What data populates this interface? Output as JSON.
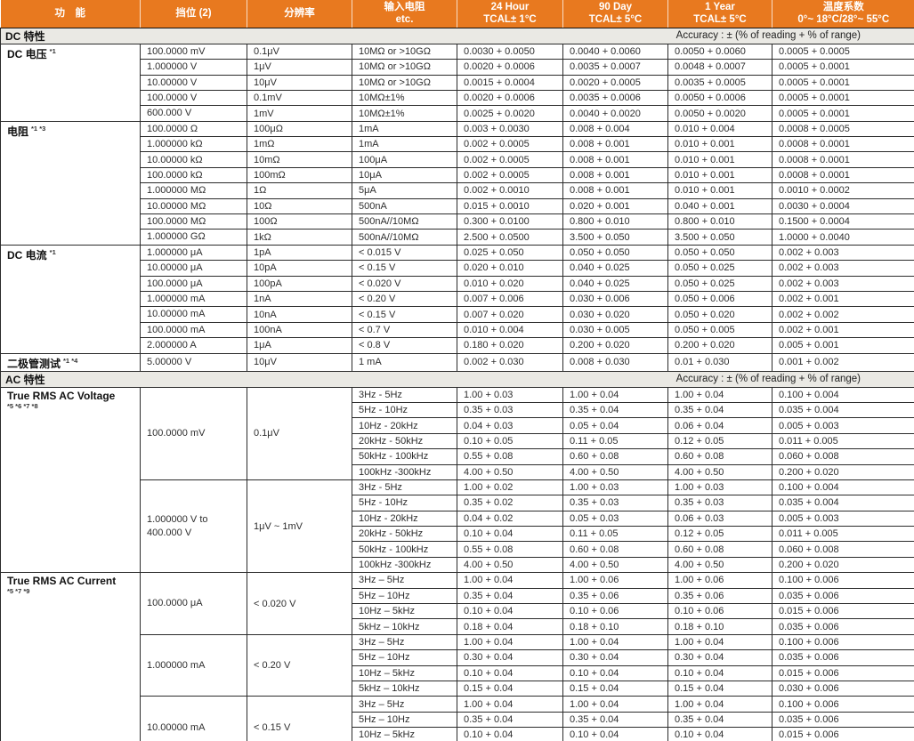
{
  "colors": {
    "header_bg": "#E8791F",
    "header_text": "#FFFFFF",
    "section_bar_bg": "#EAE9E4",
    "grid_line": "#2B2B2B"
  },
  "header": {
    "columns": [
      {
        "id": "function",
        "line1": "功　能",
        "line2": ""
      },
      {
        "id": "range",
        "line1": "挡位 (2)",
        "line2": ""
      },
      {
        "id": "resolution",
        "line1": "分辨率",
        "line2": ""
      },
      {
        "id": "input",
        "line1": "输入电阻",
        "line2": "etc."
      },
      {
        "id": "24hour",
        "line1": "24 Hour",
        "line2": "TCAL± 1°C"
      },
      {
        "id": "90day",
        "line1": "90 Day",
        "line2": "TCAL± 5°C"
      },
      {
        "id": "1year",
        "line1": "1 Year",
        "line2": "TCAL± 5°C"
      },
      {
        "id": "tempco",
        "line1": "温度系数",
        "line2": "0°~ 18°C/28°~ 55°C"
      }
    ]
  },
  "sections": [
    {
      "title": "DC 特性",
      "accuracy_note": "Accuracy : ± (% of reading + % of range)",
      "groups": [
        {
          "name": "DC 电压",
          "footnote": "*1",
          "blocks": [
            {
              "range": "100.0000 mV",
              "resolution": "0.1μV",
              "rows": [
                [
                  "10MΩ or >10GΩ",
                  "0.0030 + 0.0050",
                  "0.0040 + 0.0060",
                  "0.0050 + 0.0060",
                  "0.0005 + 0.0005"
                ]
              ]
            },
            {
              "range": "1.000000 V",
              "resolution": "1μV",
              "rows": [
                [
                  "10MΩ or >10GΩ",
                  "0.0020 + 0.0006",
                  "0.0035 + 0.0007",
                  "0.0048 + 0.0007",
                  "0.0005 + 0.0001"
                ]
              ]
            },
            {
              "range": "10.00000 V",
              "resolution": "10μV",
              "rows": [
                [
                  "10MΩ or >10GΩ",
                  "0.0015 + 0.0004",
                  "0.0020 + 0.0005",
                  "0.0035 + 0.0005",
                  "0.0005 + 0.0001"
                ]
              ]
            },
            {
              "range": "100.0000 V",
              "resolution": "0.1mV",
              "rows": [
                [
                  "10MΩ±1%",
                  "0.0020 + 0.0006",
                  "0.0035 + 0.0006",
                  "0.0050 + 0.0006",
                  "0.0005 + 0.0001"
                ]
              ]
            },
            {
              "range": "600.000 V",
              "resolution": "1mV",
              "rows": [
                [
                  "10MΩ±1%",
                  "0.0025 + 0.0020",
                  "0.0040 + 0.0020",
                  "0.0050 + 0.0020",
                  "0.0005 + 0.0001"
                ]
              ]
            }
          ]
        },
        {
          "name": "电阻",
          "footnote": "*1 *3",
          "blocks": [
            {
              "range": "100.0000 Ω",
              "resolution": "100μΩ",
              "rows": [
                [
                  "1mA",
                  "0.003 + 0.0030",
                  "0.008 + 0.004",
                  "0.010 + 0.004",
                  "0.0008 + 0.0005"
                ]
              ]
            },
            {
              "range": "1.000000 kΩ",
              "resolution": "1mΩ",
              "rows": [
                [
                  "1mA",
                  "0.002 + 0.0005",
                  "0.008 + 0.001",
                  "0.010 + 0.001",
                  "0.0008 + 0.0001"
                ]
              ]
            },
            {
              "range": "10.00000 kΩ",
              "resolution": "10mΩ",
              "rows": [
                [
                  "100μA",
                  "0.002 + 0.0005",
                  "0.008 + 0.001",
                  "0.010 + 0.001",
                  "0.0008 + 0.0001"
                ]
              ]
            },
            {
              "range": "100.0000 kΩ",
              "resolution": "100mΩ",
              "rows": [
                [
                  "10μA",
                  "0.002 + 0.0005",
                  "0.008 + 0.001",
                  "0.010 + 0.001",
                  "0.0008 + 0.0001"
                ]
              ]
            },
            {
              "range": "1.000000 MΩ",
              "resolution": "1Ω",
              "rows": [
                [
                  "5μA",
                  "0.002 + 0.0010",
                  "0.008 + 0.001",
                  "0.010 + 0.001",
                  "0.0010 + 0.0002"
                ]
              ]
            },
            {
              "range": "10.00000 MΩ",
              "resolution": "10Ω",
              "rows": [
                [
                  "500nA",
                  "0.015 + 0.0010",
                  "0.020 + 0.001",
                  "0.040 + 0.001",
                  "0.0030 + 0.0004"
                ]
              ]
            },
            {
              "range": "100.0000 MΩ",
              "resolution": "100Ω",
              "rows": [
                [
                  "500nA//10MΩ",
                  "0.300 + 0.0100",
                  "0.800 + 0.010",
                  "0.800 + 0.010",
                  "0.1500 + 0.0004"
                ]
              ]
            },
            {
              "range": "1.000000 GΩ",
              "resolution": "1kΩ",
              "rows": [
                [
                  "500nA//10MΩ",
                  "2.500 + 0.0500",
                  "3.500 + 0.050",
                  "3.500 + 0.050",
                  "1.0000 + 0.0040"
                ]
              ]
            }
          ]
        },
        {
          "name": "DC 电流",
          "footnote": "*1",
          "blocks": [
            {
              "range": "1.000000 μA",
              "resolution": "1pA",
              "rows": [
                [
                  "< 0.015 V",
                  "0.025 + 0.050",
                  "0.050 + 0.050",
                  "0.050 + 0.050",
                  "0.002 + 0.003"
                ]
              ]
            },
            {
              "range": "10.00000 μA",
              "resolution": "10pA",
              "rows": [
                [
                  "< 0.15 V",
                  "0.020 + 0.010",
                  "0.040 + 0.025",
                  "0.050 + 0.025",
                  "0.002 + 0.003"
                ]
              ]
            },
            {
              "range": "100.0000 μA",
              "resolution": "100pA",
              "rows": [
                [
                  "< 0.020 V",
                  "0.010 + 0.020",
                  "0.040 + 0.025",
                  "0.050 + 0.025",
                  "0.002 + 0.003"
                ]
              ]
            },
            {
              "range": "1.000000 mA",
              "resolution": "1nA",
              "rows": [
                [
                  "< 0.20 V",
                  "0.007 + 0.006",
                  "0.030 + 0.006",
                  "0.050 + 0.006",
                  "0.002 + 0.001"
                ]
              ]
            },
            {
              "range": "10.00000 mA",
              "resolution": "10nA",
              "rows": [
                [
                  "< 0.15 V",
                  "0.007 + 0.020",
                  "0.030 + 0.020",
                  "0.050 + 0.020",
                  "0.002 + 0.002"
                ]
              ]
            },
            {
              "range": "100.0000 mA",
              "resolution": "100nA",
              "rows": [
                [
                  "< 0.7 V",
                  "0.010 + 0.004",
                  "0.030 + 0.005",
                  "0.050 + 0.005",
                  "0.002 + 0.001"
                ]
              ]
            },
            {
              "range": "2.000000 A",
              "resolution": "1μA",
              "rows": [
                [
                  "< 0.8 V",
                  "0.180 + 0.020",
                  "0.200 + 0.020",
                  "0.200 + 0.020",
                  "0.005 + 0.001"
                ]
              ]
            }
          ]
        },
        {
          "name": "二极管测试",
          "footnote": "*1 *4",
          "blocks": [
            {
              "range": "5.00000 V",
              "resolution": "10μV",
              "rows": [
                [
                  "1 mA",
                  "0.002 + 0.030",
                  "0.008 + 0.030",
                  "0.01 + 0.030",
                  "0.001 + 0.002"
                ]
              ]
            }
          ]
        }
      ]
    },
    {
      "title": "AC 特性",
      "accuracy_note": "Accuracy : ± (% of reading + % of range)",
      "groups": [
        {
          "name": "True RMS AC Voltage",
          "footnote": "*5 *6 *7 *8",
          "blocks": [
            {
              "range": "100.0000 mV",
              "resolution": "0.1μV",
              "rows": [
                [
                  "3Hz - 5Hz",
                  "1.00 + 0.03",
                  "1.00 + 0.04",
                  "1.00 + 0.04",
                  "0.100 + 0.004"
                ],
                [
                  "5Hz - 10Hz",
                  "0.35 + 0.03",
                  "0.35 + 0.04",
                  "0.35 + 0.04",
                  "0.035 + 0.004"
                ],
                [
                  "10Hz - 20kHz",
                  "0.04 + 0.03",
                  "0.05 + 0.04",
                  "0.06 + 0.04",
                  "0.005 + 0.003"
                ],
                [
                  "20kHz - 50kHz",
                  "0.10 + 0.05",
                  "0.11 + 0.05",
                  "0.12 + 0.05",
                  "0.011 + 0.005"
                ],
                [
                  "50kHz - 100kHz",
                  "0.55 + 0.08",
                  "0.60 + 0.08",
                  "0.60 + 0.08",
                  "0.060 + 0.008"
                ],
                [
                  "100kHz -300kHz",
                  "4.00 + 0.50",
                  "4.00 + 0.50",
                  "4.00 + 0.50",
                  "0.200 + 0.020"
                ]
              ]
            },
            {
              "range": "1.000000 V to\n400.000 V",
              "resolution": "1μV ~ 1mV",
              "rows": [
                [
                  "3Hz - 5Hz",
                  "1.00 + 0.02",
                  "1.00 + 0.03",
                  "1.00 + 0.03",
                  "0.100 + 0.004"
                ],
                [
                  "5Hz - 10Hz",
                  "0.35 + 0.02",
                  "0.35 + 0.03",
                  "0.35 + 0.03",
                  "0.035 + 0.004"
                ],
                [
                  "10Hz - 20kHz",
                  "0.04 + 0.02",
                  "0.05 + 0.03",
                  "0.06 + 0.03",
                  "0.005 + 0.003"
                ],
                [
                  "20kHz - 50kHz",
                  "0.10 + 0.04",
                  "0.11 + 0.05",
                  "0.12 + 0.05",
                  "0.011 + 0.005"
                ],
                [
                  "50kHz - 100kHz",
                  "0.55 + 0.08",
                  "0.60 + 0.08",
                  "0.60 + 0.08",
                  "0.060 + 0.008"
                ],
                [
                  "100kHz -300kHz",
                  "4.00 + 0.50",
                  "4.00 + 0.50",
                  "4.00 + 0.50",
                  "0.200 + 0.020"
                ]
              ]
            }
          ]
        },
        {
          "name": "True RMS AC Current",
          "footnote": "*5 *7 *9",
          "blocks": [
            {
              "range": "100.0000 μA",
              "resolution": "< 0.020 V",
              "rows": [
                [
                  "3Hz – 5Hz",
                  "1.00 + 0.04",
                  "1.00 + 0.06",
                  "1.00 + 0.06",
                  "0.100 + 0.006"
                ],
                [
                  "5Hz – 10Hz",
                  "0.35 + 0.04",
                  "0.35 + 0.06",
                  "0.35 + 0.06",
                  "0.035 + 0.006"
                ],
                [
                  "10Hz – 5kHz",
                  "0.10 + 0.04",
                  "0.10 + 0.06",
                  "0.10 + 0.06",
                  "0.015 + 0.006"
                ],
                [
                  "5kHz – 10kHz",
                  "0.18 + 0.04",
                  "0.18 + 0.10",
                  "0.18 + 0.10",
                  "0.035 + 0.006"
                ]
              ]
            },
            {
              "range": "1.000000 mA",
              "resolution": "< 0.20 V",
              "rows": [
                [
                  "3Hz – 5Hz",
                  "1.00 + 0.04",
                  "1.00 + 0.04",
                  "1.00 + 0.04",
                  "0.100 + 0.006"
                ],
                [
                  "5Hz – 10Hz",
                  "0.30 + 0.04",
                  "0.30 + 0.04",
                  "0.30 + 0.04",
                  "0.035 + 0.006"
                ],
                [
                  "10Hz – 5kHz",
                  "0.10 + 0.04",
                  "0.10 + 0.04",
                  "0.10 + 0.04",
                  "0.015 + 0.006"
                ],
                [
                  "5kHz – 10kHz",
                  "0.15 + 0.04",
                  "0.15 + 0.04",
                  "0.15 + 0.04",
                  "0.030 + 0.006"
                ]
              ]
            },
            {
              "range": "10.00000 mA",
              "resolution": "< 0.15 V",
              "rows": [
                [
                  "3Hz – 5Hz",
                  "1.00 + 0.04",
                  "1.00 + 0.04",
                  "1.00 + 0.04",
                  "0.100 + 0.006"
                ],
                [
                  "5Hz – 10Hz",
                  "0.35 + 0.04",
                  "0.35 + 0.04",
                  "0.35 + 0.04",
                  "0.035 + 0.006"
                ],
                [
                  "10Hz – 5kHz",
                  "0.10 + 0.04",
                  "0.10 + 0.04",
                  "0.10 + 0.04",
                  "0.015 + 0.006"
                ],
                [
                  "",
                  "",
                  "",
                  "",
                  ""
                ]
              ]
            }
          ]
        }
      ]
    }
  ]
}
